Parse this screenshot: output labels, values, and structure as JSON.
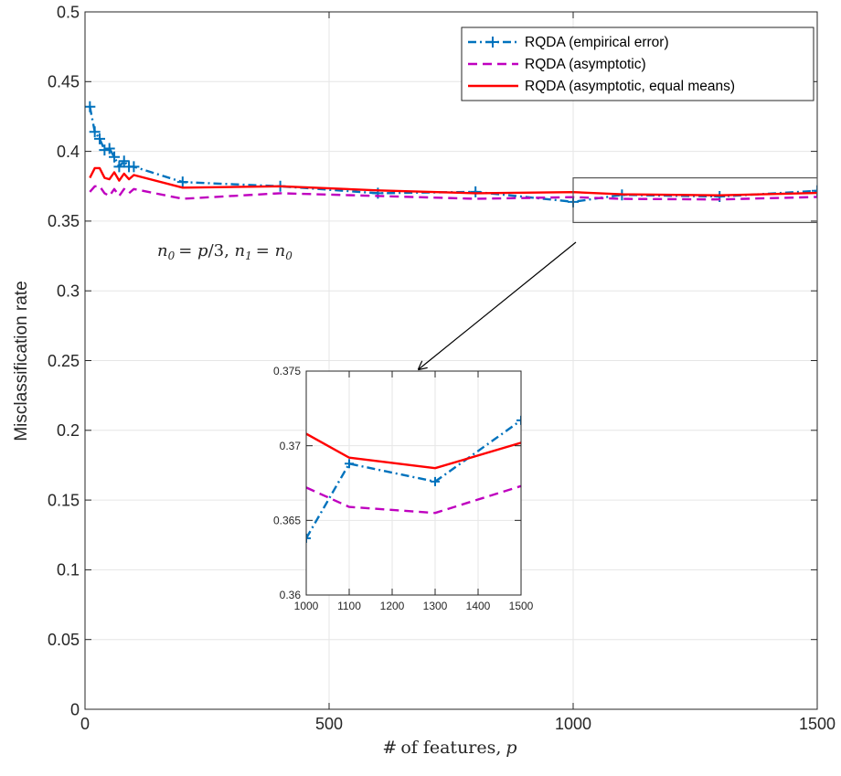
{
  "chart_data": [
    {
      "type": "line",
      "xlabel": "# of features, p",
      "ylabel": "Misclassification rate",
      "xlim": [
        0,
        1500
      ],
      "ylim": [
        0,
        0.5
      ],
      "x_ticks": [
        0,
        500,
        1000,
        1500
      ],
      "x_tick_labels": [
        "0",
        "500",
        "1000",
        "1500"
      ],
      "y_ticks": [
        0,
        0.05,
        0.1,
        0.15,
        0.2,
        0.25,
        0.3,
        0.35,
        0.4,
        0.45,
        0.5
      ],
      "y_tick_labels": [
        "0",
        "0.05",
        "0.1",
        "0.15",
        "0.2",
        "0.25",
        "0.3",
        "0.35",
        "0.4",
        "0.45",
        "0.5"
      ],
      "grid": true,
      "legend_position": "top-right",
      "annotation": "n0 = p/3, n1 = n0",
      "zoom_box": {
        "x": [
          1000,
          1500
        ],
        "y": [
          0.349,
          0.381
        ]
      },
      "series": [
        {
          "name": "RQDA (empirical error)",
          "color": "#0072BD",
          "style": "dash-dot",
          "marker": "plus",
          "x": [
            10,
            20,
            30,
            40,
            50,
            60,
            70,
            80,
            90,
            100,
            200,
            400,
            600,
            800,
            1000,
            1100,
            1300,
            1500
          ],
          "y": [
            0.432,
            0.414,
            0.409,
            0.401,
            0.402,
            0.396,
            0.389,
            0.393,
            0.389,
            0.389,
            0.378,
            0.375,
            0.37,
            0.371,
            0.3638,
            0.3688,
            0.3676,
            0.3717
          ]
        },
        {
          "name": "RQDA (asymptotic)",
          "color": "#BF00BF",
          "style": "dashed",
          "x": [
            10,
            20,
            30,
            40,
            50,
            60,
            70,
            80,
            90,
            100,
            200,
            400,
            600,
            800,
            1000,
            1100,
            1300,
            1500
          ],
          "y": [
            0.371,
            0.375,
            0.375,
            0.37,
            0.368,
            0.373,
            0.368,
            0.373,
            0.37,
            0.373,
            0.366,
            0.37,
            0.368,
            0.366,
            0.3672,
            0.3659,
            0.3655,
            0.3673
          ]
        },
        {
          "name": "RQDA (asymptotic, equal means)",
          "color": "#FF0000",
          "style": "solid",
          "x": [
            10,
            20,
            30,
            40,
            50,
            60,
            70,
            80,
            90,
            100,
            200,
            400,
            600,
            800,
            1000,
            1100,
            1300,
            1500
          ],
          "y": [
            0.381,
            0.388,
            0.388,
            0.381,
            0.38,
            0.385,
            0.379,
            0.384,
            0.38,
            0.383,
            0.374,
            0.375,
            0.372,
            0.37,
            0.3708,
            0.3692,
            0.3685,
            0.3702
          ]
        }
      ]
    },
    {
      "type": "line",
      "xlim": [
        1000,
        1500
      ],
      "ylim": [
        0.36,
        0.375
      ],
      "x_ticks": [
        1000,
        1100,
        1200,
        1300,
        1400,
        1500
      ],
      "x_tick_labels": [
        "1000",
        "1100",
        "1200",
        "1300",
        "1400",
        "1500"
      ],
      "y_ticks": [
        0.36,
        0.365,
        0.37,
        0.375
      ],
      "y_tick_labels": [
        "0.36",
        "0.365",
        "0.37",
        "0.375"
      ],
      "grid": true
    }
  ]
}
